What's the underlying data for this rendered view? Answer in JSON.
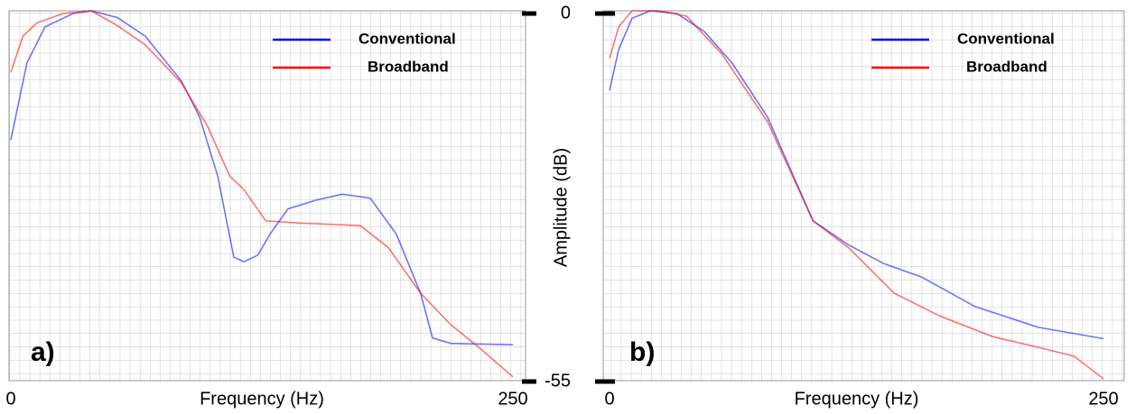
{
  "chart_data": [
    {
      "type": "line",
      "label": "a)",
      "x_label": "Frequency (Hz)",
      "xlim": [
        0,
        250
      ],
      "xticks": [
        0,
        250
      ],
      "ylim": [
        -55,
        0
      ],
      "legend": "upper right",
      "series": [
        {
          "name": "Conventional",
          "color": "#0000ff",
          "x": [
            0,
            8,
            17,
            31,
            40,
            53,
            67,
            85,
            94,
            103,
            111,
            116,
            123,
            129,
            138,
            152,
            165,
            179,
            192,
            204,
            210,
            219,
            250
          ],
          "values": [
            -19.3,
            -7.8,
            -2.4,
            -0.4,
            0,
            -1,
            -3.8,
            -10.5,
            -15.9,
            -24.7,
            -36.8,
            -37.5,
            -36.5,
            -33.4,
            -29.6,
            -28.3,
            -27.4,
            -28,
            -33.4,
            -42.2,
            -48.9,
            -49.7,
            -49.9
          ]
        },
        {
          "name": "Broadband",
          "color": "#ff0000",
          "x": [
            0,
            6,
            13,
            26,
            40,
            53,
            67,
            85,
            98,
            109,
            116,
            127,
            143,
            174,
            188,
            204,
            219,
            233,
            250
          ],
          "values": [
            -9.2,
            -3.8,
            -1.8,
            -0.4,
            0,
            -2.2,
            -5.1,
            -10.8,
            -17.3,
            -24.7,
            -26.7,
            -31.4,
            -31.7,
            -32.1,
            -35.4,
            -42.2,
            -46.9,
            -50.3,
            -54.7
          ]
        }
      ]
    },
    {
      "type": "line",
      "label": "b)",
      "x_label": "Frequency (Hz)",
      "y_label": "Amplitude (dB)",
      "xlim": [
        0,
        250
      ],
      "xticks": [
        0,
        250
      ],
      "ylim": [
        -55,
        0
      ],
      "yticks": [
        0,
        -55
      ],
      "legend": "upper right",
      "series": [
        {
          "name": "Conventional",
          "color": "#0000ff",
          "x": [
            0,
            4.6,
            11.4,
            20.6,
            34,
            48,
            62,
            80,
            103,
            121,
            139,
            158,
            185,
            217,
            250
          ],
          "values": [
            -11.9,
            -5.8,
            -1.1,
            0,
            -0.4,
            -3.1,
            -7.8,
            -15.9,
            -31.4,
            -35,
            -37.8,
            -39.8,
            -44.2,
            -47.3,
            -49
          ]
        },
        {
          "name": "Broadband",
          "color": "#ff0000",
          "x": [
            0,
            4.6,
            11.4,
            25,
            39,
            57,
            80,
            103,
            121,
            144,
            167,
            194,
            217,
            235,
            250
          ],
          "values": [
            -7.1,
            -2.4,
            0,
            0,
            -0.8,
            -6.5,
            -16.6,
            -31.4,
            -35.4,
            -42.2,
            -45.6,
            -48.7,
            -50.3,
            -51.6,
            -55
          ]
        }
      ]
    }
  ]
}
